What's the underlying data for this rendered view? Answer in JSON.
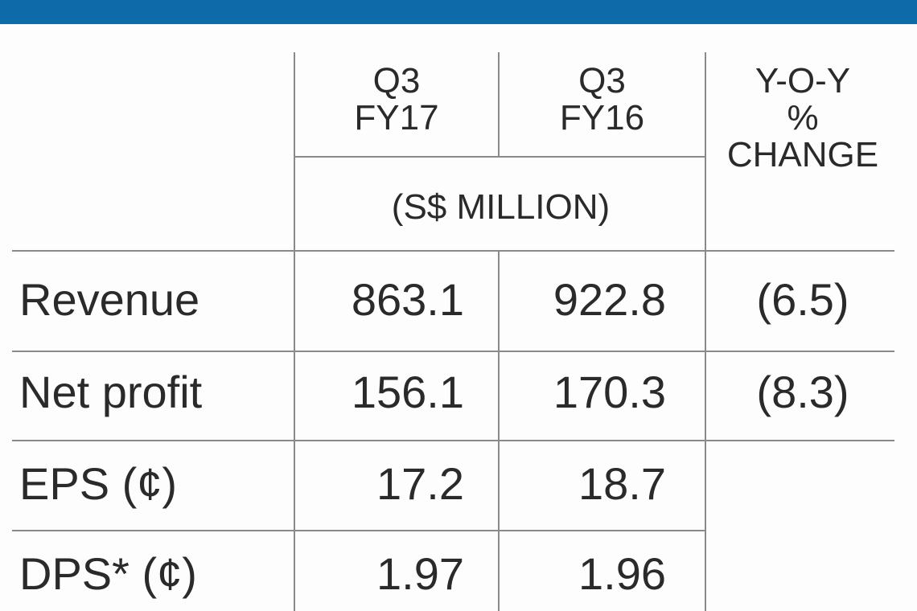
{
  "table": {
    "headers": [
      [
        "Q3",
        "FY17"
      ],
      [
        "Q3",
        "FY16"
      ],
      [
        "Y-O-Y",
        "%",
        "CHANGE"
      ]
    ],
    "unit": "(S$ MILLION)",
    "rows": [
      [
        "Revenue",
        "863.1",
        "922.8",
        "(6.5)"
      ],
      [
        "Net profit",
        "156.1",
        "170.3",
        "(8.3)"
      ],
      [
        "EPS (¢)",
        "17.2",
        "18.7"
      ],
      [
        "DPS* (¢)",
        "1.97",
        "1.96"
      ]
    ]
  }
}
